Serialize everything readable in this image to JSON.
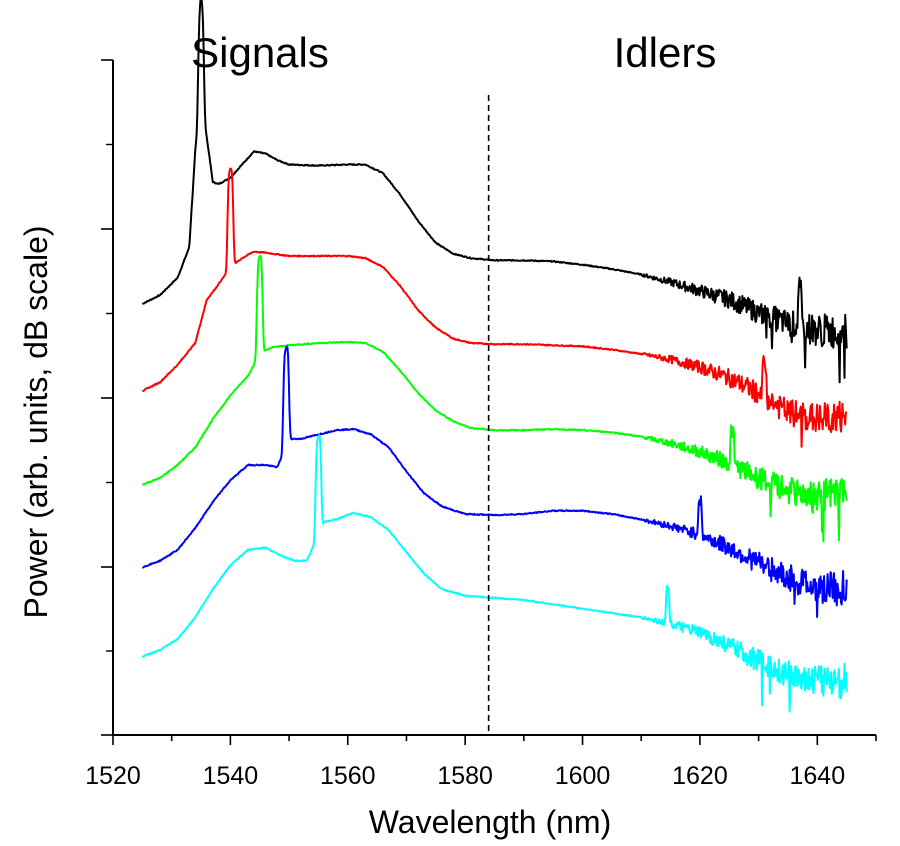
{
  "chart_data": {
    "type": "line",
    "xlabel": "Wavelength (nm)",
    "ylabel": "Power (arb. units, dB scale)",
    "xlim": [
      1520,
      1650
    ],
    "xticks": [
      "1520",
      "1540",
      "1560",
      "1580",
      "1600",
      "1620",
      "1640"
    ],
    "y_scale": "dB, arbitrary units (no tick labels)",
    "divider_x": 1584,
    "region_labels": {
      "left": "Signals",
      "right": "Idlers"
    },
    "series": [
      {
        "color": "#000000",
        "pump_peak": 1535,
        "idler_peak": 1637,
        "points": [
          [
            1525,
            -8.2
          ],
          [
            1528,
            -7.8
          ],
          [
            1531,
            -7.0
          ],
          [
            1533,
            -5.6
          ],
          [
            1534,
            -1.2
          ],
          [
            1535,
            1.5
          ],
          [
            1536,
            -0.6
          ],
          [
            1537,
            -2.6
          ],
          [
            1538,
            -2.7
          ],
          [
            1540,
            -2.4
          ],
          [
            1542,
            -1.8
          ],
          [
            1544,
            -1.2
          ],
          [
            1546,
            -1.3
          ],
          [
            1548,
            -1.6
          ],
          [
            1550,
            -1.8
          ],
          [
            1555,
            -1.85
          ],
          [
            1560,
            -1.8
          ],
          [
            1563,
            -1.8
          ],
          [
            1566,
            -2.2
          ],
          [
            1569,
            -3.2
          ],
          [
            1572,
            -4.4
          ],
          [
            1575,
            -5.4
          ],
          [
            1578,
            -5.9
          ],
          [
            1581,
            -6.1
          ],
          [
            1585,
            -6.2
          ],
          [
            1590,
            -6.2
          ],
          [
            1595,
            -6.25
          ],
          [
            1600,
            -6.4
          ],
          [
            1605,
            -6.6
          ],
          [
            1610,
            -6.85
          ],
          [
            1615,
            -7.2
          ],
          [
            1620,
            -7.6
          ],
          [
            1625,
            -8.0
          ],
          [
            1630,
            -8.6
          ],
          [
            1635,
            -9.1
          ],
          [
            1640,
            -9.4
          ],
          [
            1645,
            -9.5
          ]
        ]
      },
      {
        "color": "#ff0000",
        "pump_peak": 1540,
        "idler_peak": 1631,
        "points": [
          [
            1525,
            -12.2
          ],
          [
            1528,
            -11.8
          ],
          [
            1531,
            -11.0
          ],
          [
            1534,
            -10.0
          ],
          [
            1536,
            -8.0
          ],
          [
            1538,
            -7.3
          ],
          [
            1540,
            -6.5
          ],
          [
            1542,
            -6.1
          ],
          [
            1544,
            -5.8
          ],
          [
            1546,
            -5.85
          ],
          [
            1550,
            -6.0
          ],
          [
            1555,
            -6.0
          ],
          [
            1560,
            -6.0
          ],
          [
            1563,
            -6.1
          ],
          [
            1566,
            -6.5
          ],
          [
            1569,
            -7.4
          ],
          [
            1572,
            -8.5
          ],
          [
            1575,
            -9.3
          ],
          [
            1578,
            -9.8
          ],
          [
            1581,
            -10.0
          ],
          [
            1585,
            -10.05
          ],
          [
            1590,
            -10.05
          ],
          [
            1595,
            -10.1
          ],
          [
            1600,
            -10.15
          ],
          [
            1605,
            -10.3
          ],
          [
            1610,
            -10.5
          ],
          [
            1615,
            -10.75
          ],
          [
            1620,
            -11.1
          ],
          [
            1625,
            -11.6
          ],
          [
            1630,
            -12.3
          ],
          [
            1635,
            -13.2
          ],
          [
            1640,
            -13.5
          ],
          [
            1645,
            -13.4
          ]
        ]
      },
      {
        "color": "#00ff00",
        "pump_peak": 1545,
        "idler_peak": 1625.5,
        "points": [
          [
            1525,
            -16.5
          ],
          [
            1528,
            -16.2
          ],
          [
            1531,
            -15.6
          ],
          [
            1534,
            -14.8
          ],
          [
            1537,
            -13.5
          ],
          [
            1540,
            -12.4
          ],
          [
            1543,
            -11.5
          ],
          [
            1545,
            -10.5
          ],
          [
            1547,
            -10.2
          ],
          [
            1550,
            -10.1
          ],
          [
            1555,
            -10.0
          ],
          [
            1560,
            -9.95
          ],
          [
            1563,
            -10.0
          ],
          [
            1566,
            -10.4
          ],
          [
            1569,
            -11.3
          ],
          [
            1572,
            -12.3
          ],
          [
            1575,
            -13.1
          ],
          [
            1578,
            -13.6
          ],
          [
            1581,
            -13.9
          ],
          [
            1585,
            -14.0
          ],
          [
            1590,
            -14.0
          ],
          [
            1595,
            -13.95
          ],
          [
            1600,
            -14.0
          ],
          [
            1605,
            -14.1
          ],
          [
            1610,
            -14.3
          ],
          [
            1615,
            -14.6
          ],
          [
            1620,
            -15.0
          ],
          [
            1625,
            -15.5
          ],
          [
            1630,
            -16.2
          ],
          [
            1635,
            -16.8
          ],
          [
            1640,
            -17.0
          ],
          [
            1645,
            -17.0
          ]
        ]
      },
      {
        "color": "#0000ff",
        "pump_peak": 1549.5,
        "idler_peak": 1620,
        "points": [
          [
            1525,
            -20.3
          ],
          [
            1528,
            -20.0
          ],
          [
            1531,
            -19.5
          ],
          [
            1534,
            -18.5
          ],
          [
            1537,
            -17.3
          ],
          [
            1540,
            -16.3
          ],
          [
            1543,
            -15.6
          ],
          [
            1546,
            -15.6
          ],
          [
            1548,
            -15.7
          ],
          [
            1550,
            -14.4
          ],
          [
            1552,
            -14.4
          ],
          [
            1555,
            -14.2
          ],
          [
            1558,
            -14.0
          ],
          [
            1561,
            -13.95
          ],
          [
            1564,
            -14.2
          ],
          [
            1567,
            -14.8
          ],
          [
            1570,
            -15.9
          ],
          [
            1573,
            -16.9
          ],
          [
            1576,
            -17.5
          ],
          [
            1580,
            -17.85
          ],
          [
            1585,
            -17.9
          ],
          [
            1590,
            -17.85
          ],
          [
            1595,
            -17.7
          ],
          [
            1600,
            -17.7
          ],
          [
            1605,
            -17.85
          ],
          [
            1610,
            -18.1
          ],
          [
            1615,
            -18.4
          ],
          [
            1620,
            -18.8
          ],
          [
            1625,
            -19.4
          ],
          [
            1630,
            -20.1
          ],
          [
            1635,
            -20.8
          ],
          [
            1640,
            -21.2
          ],
          [
            1645,
            -21.3
          ]
        ]
      },
      {
        "color": "#00ffff",
        "pump_peak": 1555,
        "idler_peak": 1614.5,
        "points": [
          [
            1525,
            -24.4
          ],
          [
            1528,
            -24.1
          ],
          [
            1531,
            -23.6
          ],
          [
            1534,
            -22.6
          ],
          [
            1537,
            -21.3
          ],
          [
            1540,
            -20.2
          ],
          [
            1543,
            -19.5
          ],
          [
            1546,
            -19.4
          ],
          [
            1549,
            -19.8
          ],
          [
            1551,
            -20.0
          ],
          [
            1553,
            -20.0
          ],
          [
            1556,
            -18.2
          ],
          [
            1558,
            -18.1
          ],
          [
            1561,
            -17.8
          ],
          [
            1564,
            -18.0
          ],
          [
            1567,
            -18.6
          ],
          [
            1570,
            -19.6
          ],
          [
            1573,
            -20.6
          ],
          [
            1576,
            -21.3
          ],
          [
            1580,
            -21.6
          ],
          [
            1585,
            -21.7
          ],
          [
            1590,
            -21.8
          ],
          [
            1595,
            -22.0
          ],
          [
            1600,
            -22.2
          ],
          [
            1605,
            -22.4
          ],
          [
            1610,
            -22.6
          ],
          [
            1615,
            -22.9
          ],
          [
            1620,
            -23.3
          ],
          [
            1625,
            -23.9
          ],
          [
            1630,
            -24.6
          ],
          [
            1635,
            -25.2
          ],
          [
            1640,
            -25.5
          ],
          [
            1645,
            -25.5
          ]
        ]
      }
    ]
  }
}
